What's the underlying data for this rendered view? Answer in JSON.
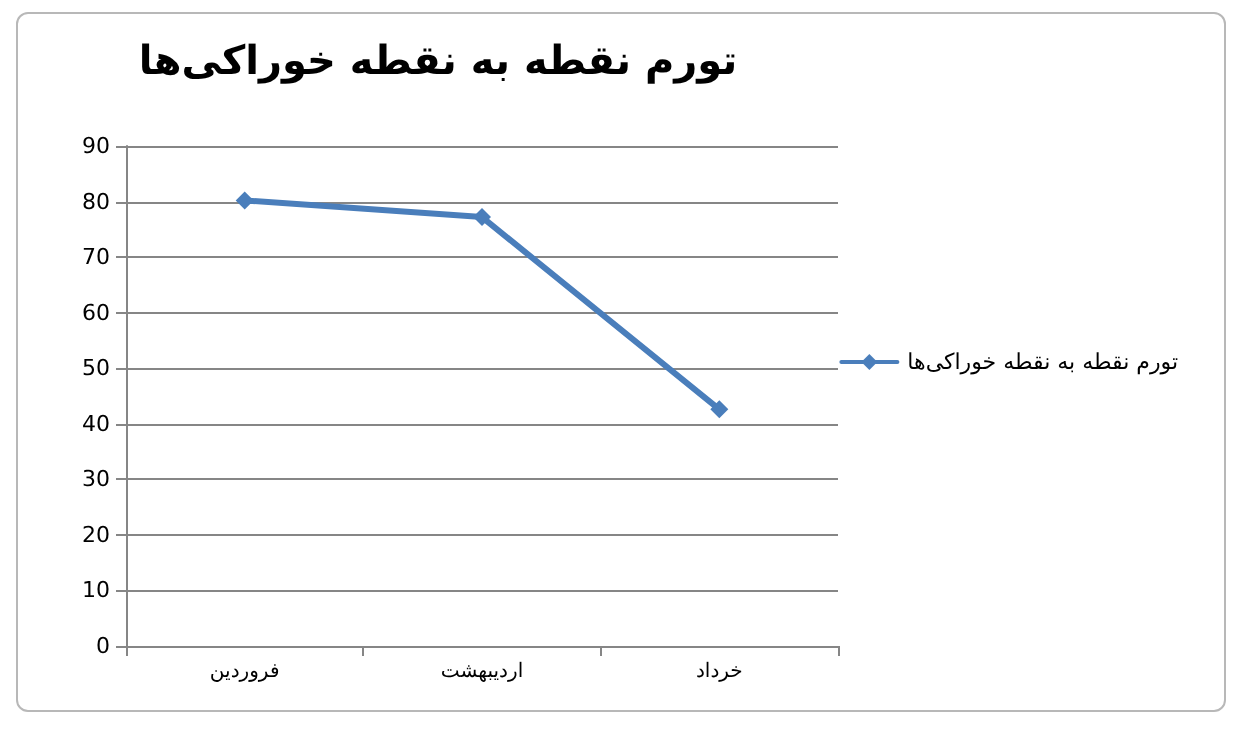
{
  "chart_data": {
    "type": "line",
    "title": "تورم نقطه به نقطه خوراکی‌ها",
    "categories": [
      "فروردین",
      "اردیبهشت",
      "خرداد"
    ],
    "series": [
      {
        "name": "تورم نقطه به نقطه خوراکی‌ها",
        "color": "#4a7ebb",
        "values": [
          80.2,
          77.2,
          42.6
        ]
      }
    ],
    "ylim": [
      0,
      90
    ],
    "yticks": [
      0,
      10,
      20,
      30,
      40,
      50,
      60,
      70,
      80,
      90
    ],
    "grid": "y",
    "legend": "right",
    "marker": "diamond",
    "line_style": "solid"
  }
}
